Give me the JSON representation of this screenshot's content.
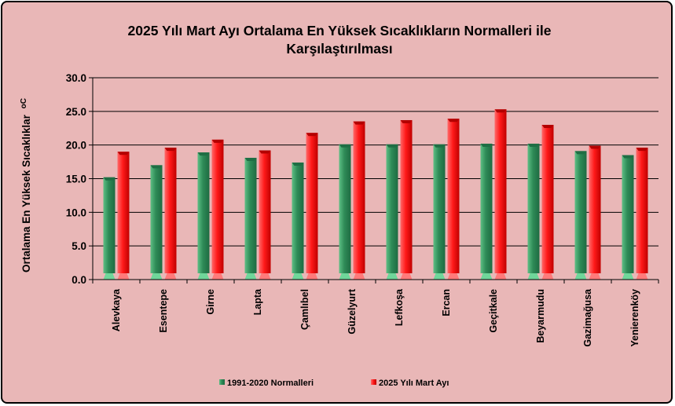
{
  "chart_data": {
    "type": "bar",
    "title_line1": "2025 Yılı Mart Ayı Ortalama En Yüksek Sıcaklıkların Normalleri ile",
    "title_line2": "Karşılaştırılması",
    "ylabel": "Ortalama En Yüksek Sıcaklıklar",
    "ylabel_unit": "oC",
    "xlabel": "",
    "ylim": [
      0,
      30
    ],
    "yticks": [
      "0.0",
      "5.0",
      "10.0",
      "15.0",
      "20.0",
      "25.0",
      "30.0"
    ],
    "grid": true,
    "legend_position": "bottom",
    "categories": [
      "Alevkaya",
      "Esentepe",
      "Girne",
      "Lapta",
      "Çamlıbel",
      "Güzelyurt",
      "Lefkoşa",
      "Ercan",
      "Geçitkale",
      "Beyarmudu",
      "Gazimağusa",
      "Yenierenköy"
    ],
    "series": [
      {
        "name": "1991-2020  Normalleri",
        "color": "#2e8b57",
        "values": [
          15.2,
          17.0,
          18.9,
          18.1,
          17.4,
          20.1,
          20.1,
          20.1,
          20.2,
          20.2,
          19.1,
          18.5
        ]
      },
      {
        "name": "2025 Yılı Mart Ayı",
        "color": "#ff1a1a",
        "values": [
          19.0,
          19.6,
          20.8,
          19.2,
          21.8,
          23.5,
          23.7,
          23.9,
          25.3,
          23.0,
          19.9,
          19.6
        ]
      }
    ]
  }
}
